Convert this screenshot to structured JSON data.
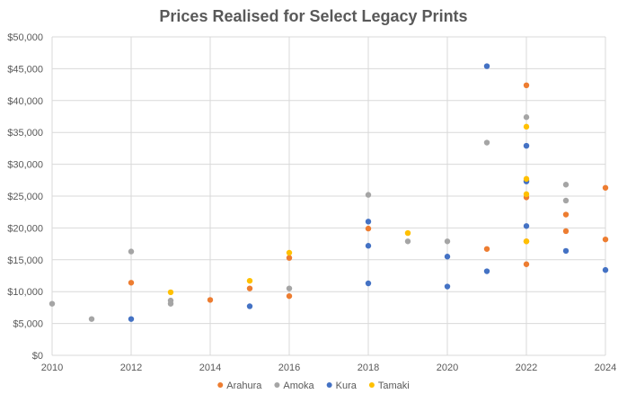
{
  "chart_data": {
    "type": "scatter",
    "title": "Prices Realised for Select Legacy Prints",
    "xlabel": "",
    "ylabel": "",
    "xlim": [
      2010,
      2024
    ],
    "ylim": [
      0,
      50000
    ],
    "x_ticks": [
      "2010",
      "2012",
      "2014",
      "2016",
      "2018",
      "2020",
      "2022",
      "2024"
    ],
    "y_ticks": [
      "$0",
      "$5,000",
      "$10,000",
      "$15,000",
      "$20,000",
      "$25,000",
      "$30,000",
      "$35,000",
      "$40,000",
      "$45,000",
      "$50,000"
    ],
    "grid": true,
    "legend_position": "bottom",
    "series": [
      {
        "name": "Arahura",
        "color": "#ED7D31",
        "points": [
          [
            2012,
            11400
          ],
          [
            2014,
            8700
          ],
          [
            2015,
            10500
          ],
          [
            2016,
            15300
          ],
          [
            2016,
            9300
          ],
          [
            2018,
            19900
          ],
          [
            2021,
            16700
          ],
          [
            2022,
            42400
          ],
          [
            2022,
            24800
          ],
          [
            2022,
            17900
          ],
          [
            2022,
            14300
          ],
          [
            2023,
            22100
          ],
          [
            2023,
            19500
          ],
          [
            2024,
            26300
          ],
          [
            2024,
            18200
          ]
        ]
      },
      {
        "name": "Amoka",
        "color": "#A5A5A5",
        "points": [
          [
            2010,
            8100
          ],
          [
            2011,
            5700
          ],
          [
            2012,
            16300
          ],
          [
            2013,
            8600
          ],
          [
            2013,
            8100
          ],
          [
            2016,
            10500
          ],
          [
            2018,
            25200
          ],
          [
            2019,
            17900
          ],
          [
            2020,
            17900
          ],
          [
            2021,
            33400
          ],
          [
            2022,
            37400
          ],
          [
            2022,
            27400
          ],
          [
            2023,
            26800
          ],
          [
            2023,
            24300
          ]
        ]
      },
      {
        "name": "Kura",
        "color": "#4472C4",
        "points": [
          [
            2012,
            5700
          ],
          [
            2015,
            7700
          ],
          [
            2018,
            21000
          ],
          [
            2018,
            17200
          ],
          [
            2018,
            11300
          ],
          [
            2020,
            15500
          ],
          [
            2020,
            10800
          ],
          [
            2021,
            45400
          ],
          [
            2021,
            13200
          ],
          [
            2022,
            32900
          ],
          [
            2022,
            27300
          ],
          [
            2022,
            20300
          ],
          [
            2023,
            16400
          ],
          [
            2024,
            13400
          ]
        ]
      },
      {
        "name": "Tamaki",
        "color": "#FFC000",
        "points": [
          [
            2013,
            9900
          ],
          [
            2015,
            11700
          ],
          [
            2016,
            16100
          ],
          [
            2019,
            19200
          ],
          [
            2022,
            35900
          ],
          [
            2022,
            27700
          ],
          [
            2022,
            25300
          ],
          [
            2022,
            17900
          ]
        ]
      }
    ]
  }
}
